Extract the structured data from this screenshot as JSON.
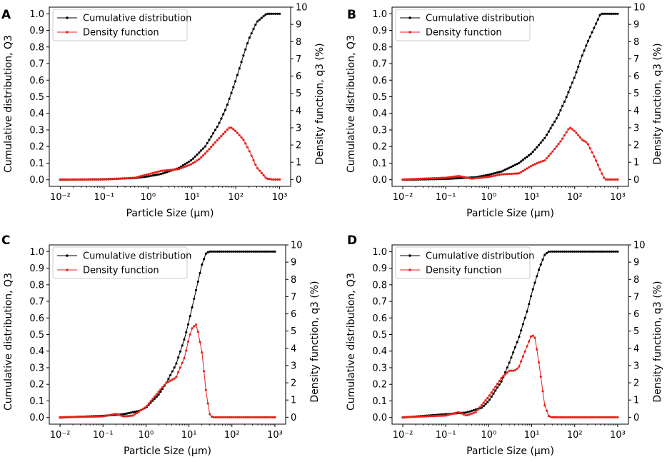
{
  "chart_data": [
    {
      "panel": "A",
      "type": "line",
      "xlabel": "Particle Size (µm)",
      "ylabel_left": "Cumulative distribution, Q3",
      "ylabel_right": "Density function, q3 (%)",
      "xscale": "log",
      "xlim": [
        0.01,
        1000
      ],
      "ylim_left": [
        -0.04,
        1.0
      ],
      "ylim_right": [
        -0.4,
        10
      ],
      "xticks": [
        "10⁻²",
        "10⁻¹",
        "10⁰",
        "10¹",
        "10²",
        "10³"
      ],
      "yticks_left": [
        "0.0",
        "0.1",
        "0.2",
        "0.3",
        "0.4",
        "0.5",
        "0.6",
        "0.7",
        "0.8",
        "0.9",
        "1.0"
      ],
      "yticks_right": [
        "0",
        "1",
        "2",
        "3",
        "4",
        "5",
        "6",
        "7",
        "8",
        "9",
        "10"
      ],
      "legend": [
        "Cumulative distribution",
        "Density function"
      ],
      "series": [
        {
          "name": "Cumulative distribution",
          "axis": "left",
          "color": "#000000",
          "x": [
            0.01,
            0.1,
            0.5,
            1,
            2,
            5,
            10,
            20,
            40,
            60,
            100,
            150,
            200,
            300,
            500,
            700,
            1000
          ],
          "y": [
            0.0,
            0.003,
            0.01,
            0.02,
            0.035,
            0.07,
            0.12,
            0.2,
            0.33,
            0.43,
            0.6,
            0.75,
            0.85,
            0.95,
            1.0,
            1.0,
            1.0
          ]
        },
        {
          "name": "Density function",
          "axis": "right",
          "color": "#e8211c",
          "x": [
            0.01,
            0.1,
            0.5,
            1,
            2,
            5,
            10,
            15,
            20,
            30,
            50,
            70,
            80,
            100,
            150,
            200,
            300,
            500,
            700,
            1000
          ],
          "y": [
            0.0,
            0.0,
            0.1,
            0.3,
            0.5,
            0.6,
            0.9,
            1.2,
            1.5,
            2.0,
            2.6,
            3.0,
            3.0,
            2.8,
            2.3,
            1.7,
            0.7,
            0.05,
            0.0,
            0.0
          ]
        }
      ]
    },
    {
      "panel": "B",
      "type": "line",
      "xlabel": "Particle Size (µm)",
      "ylabel_left": "Cumulative distribution, Q3",
      "ylabel_right": "Density function, q3 (%)",
      "xscale": "log",
      "xlim": [
        0.01,
        1000
      ],
      "ylim_left": [
        -0.04,
        1.0
      ],
      "ylim_right": [
        -0.4,
        10
      ],
      "xticks": [
        "10⁻²",
        "10⁻¹",
        "10⁰",
        "10¹",
        "10²",
        "10³"
      ],
      "yticks_left": [
        "0.0",
        "0.1",
        "0.2",
        "0.3",
        "0.4",
        "0.5",
        "0.6",
        "0.7",
        "0.8",
        "0.9",
        "1.0"
      ],
      "yticks_right": [
        "0",
        "1",
        "2",
        "3",
        "4",
        "5",
        "6",
        "7",
        "8",
        "9",
        "10"
      ],
      "legend": [
        "Cumulative distribution",
        "Density function"
      ],
      "series": [
        {
          "name": "Cumulative distribution",
          "axis": "left",
          "color": "#000000",
          "x": [
            0.01,
            0.1,
            0.5,
            1,
            2,
            5,
            10,
            20,
            40,
            60,
            100,
            150,
            200,
            300,
            400,
            700,
            1000
          ],
          "y": [
            0.0,
            0.005,
            0.015,
            0.03,
            0.05,
            0.1,
            0.16,
            0.25,
            0.38,
            0.48,
            0.62,
            0.75,
            0.83,
            0.93,
            1.0,
            1.0,
            1.0
          ]
        },
        {
          "name": "Density function",
          "axis": "right",
          "color": "#e8211c",
          "x": [
            0.01,
            0.1,
            0.2,
            0.4,
            1,
            2,
            5,
            10,
            15,
            20,
            30,
            50,
            70,
            80,
            100,
            150,
            200,
            300,
            400,
            500,
            700,
            1000
          ],
          "y": [
            0.0,
            0.1,
            0.2,
            0.05,
            0.15,
            0.3,
            0.35,
            0.8,
            1.0,
            1.1,
            1.6,
            2.3,
            2.9,
            3.0,
            2.8,
            2.3,
            2.1,
            1.2,
            0.5,
            0.0,
            0.0,
            0.0
          ]
        }
      ]
    },
    {
      "panel": "C",
      "type": "line",
      "xlabel": "Particle Size (µm)",
      "ylabel_left": "Cumulative distribution, Q3",
      "ylabel_right": "Density function, q3 (%)",
      "xscale": "log",
      "xlim": [
        0.01,
        1000
      ],
      "ylim_left": [
        -0.04,
        1.0
      ],
      "ylim_right": [
        -0.4,
        10
      ],
      "xticks": [
        "10⁻²",
        "10⁻¹",
        "10⁰",
        "10¹",
        "10²",
        "10³"
      ],
      "yticks_left": [
        "0.0",
        "0.1",
        "0.2",
        "0.3",
        "0.4",
        "0.5",
        "0.6",
        "0.7",
        "0.8",
        "0.9",
        "1.0"
      ],
      "yticks_right": [
        "0",
        "1",
        "2",
        "3",
        "4",
        "5",
        "6",
        "7",
        "8",
        "9",
        "10"
      ],
      "legend": [
        "Cumulative distribution",
        "Density function"
      ],
      "series": [
        {
          "name": "Cumulative distribution",
          "axis": "left",
          "color": "#000000",
          "x": [
            0.01,
            0.1,
            0.3,
            0.7,
            1,
            2,
            3,
            5,
            8,
            10,
            15,
            20,
            25,
            30,
            50,
            100,
            1000
          ],
          "y": [
            0.0,
            0.01,
            0.02,
            0.04,
            0.06,
            0.14,
            0.21,
            0.32,
            0.48,
            0.58,
            0.78,
            0.92,
            0.99,
            1.0,
            1.0,
            1.0,
            1.0
          ]
        },
        {
          "name": "Density function",
          "axis": "right",
          "color": "#e8211c",
          "x": [
            0.01,
            0.1,
            0.2,
            0.3,
            0.5,
            1,
            2,
            3,
            5,
            8,
            10,
            12,
            15,
            20,
            25,
            30,
            35,
            50,
            100,
            1000
          ],
          "y": [
            0.0,
            0.05,
            0.2,
            0.05,
            0.1,
            0.6,
            1.5,
            2.0,
            2.3,
            3.5,
            4.6,
            5.2,
            5.4,
            3.8,
            1.5,
            0.2,
            0.0,
            0.0,
            0.0,
            0.0
          ]
        }
      ]
    },
    {
      "panel": "D",
      "type": "line",
      "xlabel": "Particle Size (µm)",
      "ylabel_left": "Cumulative distribution, Q3",
      "ylabel_right": "Density function, q3 (%)",
      "xscale": "log",
      "xlim": [
        0.01,
        1000
      ],
      "ylim_left": [
        -0.04,
        1.0
      ],
      "ylim_right": [
        -0.4,
        10
      ],
      "xticks": [
        "10⁻²",
        "10⁻¹",
        "10⁰",
        "10¹",
        "10²",
        "10³"
      ],
      "yticks_left": [
        "0.0",
        "0.1",
        "0.2",
        "0.3",
        "0.4",
        "0.5",
        "0.6",
        "0.7",
        "0.8",
        "0.9",
        "1.0"
      ],
      "yticks_right": [
        "0",
        "1",
        "2",
        "3",
        "4",
        "5",
        "6",
        "7",
        "8",
        "9",
        "10"
      ],
      "legend": [
        "Cumulative distribution",
        "Density function"
      ],
      "series": [
        {
          "name": "Cumulative distribution",
          "axis": "left",
          "color": "#000000",
          "x": [
            0.01,
            0.1,
            0.3,
            0.7,
            1,
            2,
            3,
            5,
            8,
            10,
            15,
            20,
            25,
            30,
            100,
            1000
          ],
          "y": [
            0.0,
            0.02,
            0.03,
            0.06,
            0.1,
            0.22,
            0.33,
            0.48,
            0.65,
            0.75,
            0.9,
            0.98,
            1.0,
            1.0,
            1.0,
            1.0
          ]
        },
        {
          "name": "Density function",
          "axis": "right",
          "color": "#e8211c",
          "x": [
            0.01,
            0.1,
            0.2,
            0.3,
            0.5,
            1,
            2,
            3,
            4,
            5,
            8,
            10,
            12,
            15,
            20,
            25,
            30,
            100,
            1000
          ],
          "y": [
            0.0,
            0.1,
            0.3,
            0.1,
            0.3,
            1.2,
            2.3,
            2.7,
            2.7,
            2.9,
            4.2,
            4.8,
            4.6,
            3.0,
            0.7,
            0.05,
            0.0,
            0.0,
            0.0
          ]
        }
      ]
    }
  ]
}
